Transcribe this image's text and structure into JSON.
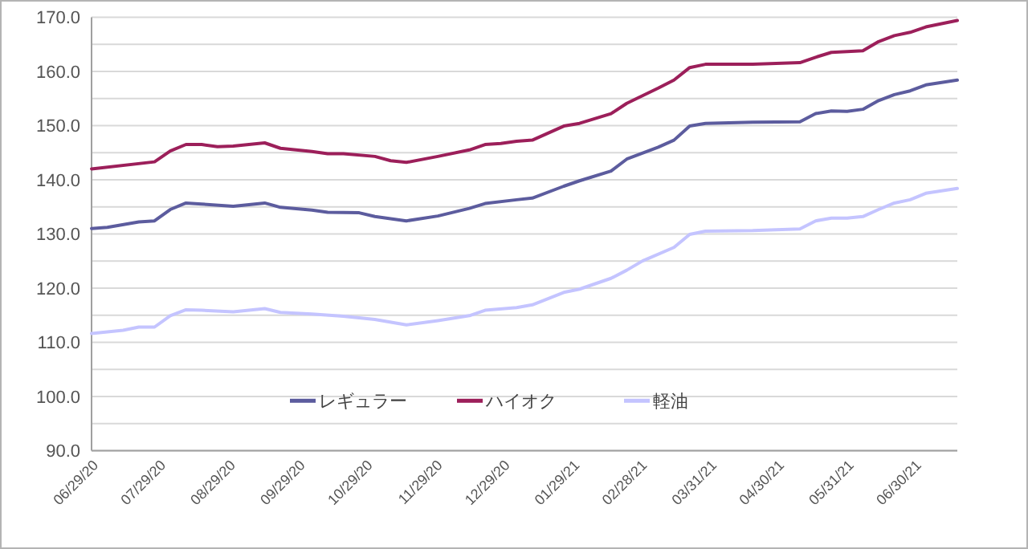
{
  "chart_data": {
    "type": "line",
    "xlim": [
      "2020-06-29",
      "2021-07-19"
    ],
    "ylim": [
      90,
      170
    ],
    "xticks": [
      {
        "value": "2020-06-29",
        "label": "06/29/20"
      },
      {
        "value": "2020-07-29",
        "label": "07/29/20"
      },
      {
        "value": "2020-08-29",
        "label": "08/29/20"
      },
      {
        "value": "2020-09-29",
        "label": "09/29/20"
      },
      {
        "value": "2020-10-29",
        "label": "10/29/20"
      },
      {
        "value": "2020-11-29",
        "label": "11/29/20"
      },
      {
        "value": "2020-12-29",
        "label": "12/29/20"
      },
      {
        "value": "2021-01-29",
        "label": "01/29/21"
      },
      {
        "value": "2021-02-28",
        "label": "02/28/21"
      },
      {
        "value": "2021-03-31",
        "label": "03/31/21"
      },
      {
        "value": "2021-04-30",
        "label": "04/30/21"
      },
      {
        "value": "2021-05-31",
        "label": "05/31/21"
      },
      {
        "value": "2021-06-30",
        "label": "06/30/21"
      }
    ],
    "yticks": [
      {
        "value": 90,
        "label": "90.0"
      },
      {
        "value": 95,
        "label": null
      },
      {
        "value": 100,
        "label": "100.0"
      },
      {
        "value": 105,
        "label": null
      },
      {
        "value": 110,
        "label": "110.0"
      },
      {
        "value": 115,
        "label": null
      },
      {
        "value": 120,
        "label": "120.0"
      },
      {
        "value": 125,
        "label": null
      },
      {
        "value": 130,
        "label": "130.0"
      },
      {
        "value": 135,
        "label": null
      },
      {
        "value": 140,
        "label": "140.0"
      },
      {
        "value": 145,
        "label": null
      },
      {
        "value": 150,
        "label": "150.0"
      },
      {
        "value": 155,
        "label": null
      },
      {
        "value": 160,
        "label": "160.0"
      },
      {
        "value": 165,
        "label": null
      },
      {
        "value": 170,
        "label": "170.0"
      }
    ],
    "grid": "y",
    "legend": "bottom",
    "series": [
      {
        "name": "レギュラー",
        "color": "#5c5c9e",
        "x": [
          "2020-06-29",
          "2020-07-06",
          "2020-07-20",
          "2020-07-27",
          "2020-08-03",
          "2020-08-10",
          "2020-08-17",
          "2020-08-31",
          "2020-09-14",
          "2020-09-21",
          "2020-10-05",
          "2020-10-12",
          "2020-10-26",
          "2020-11-02",
          "2020-11-16",
          "2020-11-30",
          "2020-12-14",
          "2020-12-21",
          "2021-01-04",
          "2021-01-11",
          "2021-01-25",
          "2021-02-01",
          "2021-02-15",
          "2021-02-22",
          "2021-03-08",
          "2021-03-15",
          "2021-03-22",
          "2021-03-29",
          "2021-04-19",
          "2021-05-10",
          "2021-05-17",
          "2021-05-24",
          "2021-05-31",
          "2021-06-07",
          "2021-06-14",
          "2021-06-21",
          "2021-06-28",
          "2021-07-05",
          "2021-07-19"
        ],
        "values": [
          131.0,
          131.2,
          132.2,
          132.4,
          134.5,
          135.7,
          135.5,
          135.1,
          135.7,
          134.9,
          134.4,
          134.0,
          133.9,
          133.2,
          132.4,
          133.3,
          134.7,
          135.6,
          136.3,
          136.6,
          138.8,
          139.8,
          141.6,
          143.8,
          146.0,
          147.3,
          149.9,
          150.4,
          150.6,
          150.7,
          152.2,
          152.7,
          152.6,
          153.0,
          154.6,
          155.7,
          156.4,
          157.5,
          158.4
        ]
      },
      {
        "name": "ハイオク",
        "color": "#9c1f5a",
        "x": [
          "2020-06-29",
          "2020-07-27",
          "2020-08-03",
          "2020-08-10",
          "2020-08-17",
          "2020-08-24",
          "2020-08-31",
          "2020-09-14",
          "2020-09-21",
          "2020-10-05",
          "2020-10-12",
          "2020-10-19",
          "2020-11-02",
          "2020-11-09",
          "2020-11-16",
          "2020-11-30",
          "2020-12-14",
          "2020-12-21",
          "2020-12-28",
          "2021-01-04",
          "2021-01-11",
          "2021-01-25",
          "2021-02-01",
          "2021-02-15",
          "2021-02-22",
          "2021-03-08",
          "2021-03-15",
          "2021-03-22",
          "2021-03-29",
          "2021-04-19",
          "2021-05-10",
          "2021-05-17",
          "2021-05-24",
          "2021-06-07",
          "2021-06-14",
          "2021-06-21",
          "2021-06-28",
          "2021-07-05",
          "2021-07-19"
        ],
        "values": [
          142.0,
          143.3,
          145.3,
          146.5,
          146.5,
          146.1,
          146.2,
          146.8,
          145.8,
          145.2,
          144.8,
          144.8,
          144.3,
          143.5,
          143.2,
          144.3,
          145.5,
          146.5,
          146.7,
          147.1,
          147.3,
          149.9,
          150.4,
          152.2,
          154.1,
          156.9,
          158.4,
          160.7,
          161.3,
          161.3,
          161.6,
          162.6,
          163.5,
          163.8,
          165.5,
          166.6,
          167.2,
          168.2,
          169.4
        ]
      },
      {
        "name": "軽油",
        "color": "#c4c4ff",
        "x": [
          "2020-06-29",
          "2020-07-13",
          "2020-07-20",
          "2020-07-27",
          "2020-08-03",
          "2020-08-10",
          "2020-08-17",
          "2020-08-31",
          "2020-09-14",
          "2020-09-21",
          "2020-10-05",
          "2020-10-19",
          "2020-11-02",
          "2020-11-16",
          "2020-11-30",
          "2020-12-14",
          "2020-12-21",
          "2021-01-04",
          "2021-01-11",
          "2021-01-25",
          "2021-02-01",
          "2021-02-15",
          "2021-02-22",
          "2021-03-01",
          "2021-03-15",
          "2021-03-22",
          "2021-03-29",
          "2021-04-19",
          "2021-05-10",
          "2021-05-17",
          "2021-05-24",
          "2021-05-31",
          "2021-06-07",
          "2021-06-14",
          "2021-06-21",
          "2021-06-28",
          "2021-07-05",
          "2021-07-19"
        ],
        "values": [
          111.6,
          112.2,
          112.8,
          112.8,
          114.9,
          116.0,
          115.9,
          115.6,
          116.2,
          115.5,
          115.2,
          114.8,
          114.2,
          113.2,
          114.0,
          114.9,
          115.9,
          116.4,
          116.9,
          119.2,
          119.8,
          121.8,
          123.3,
          125.0,
          127.5,
          129.9,
          130.5,
          130.6,
          130.9,
          132.4,
          132.9,
          132.9,
          133.2,
          134.5,
          135.7,
          136.3,
          137.5,
          138.4
        ]
      }
    ]
  }
}
